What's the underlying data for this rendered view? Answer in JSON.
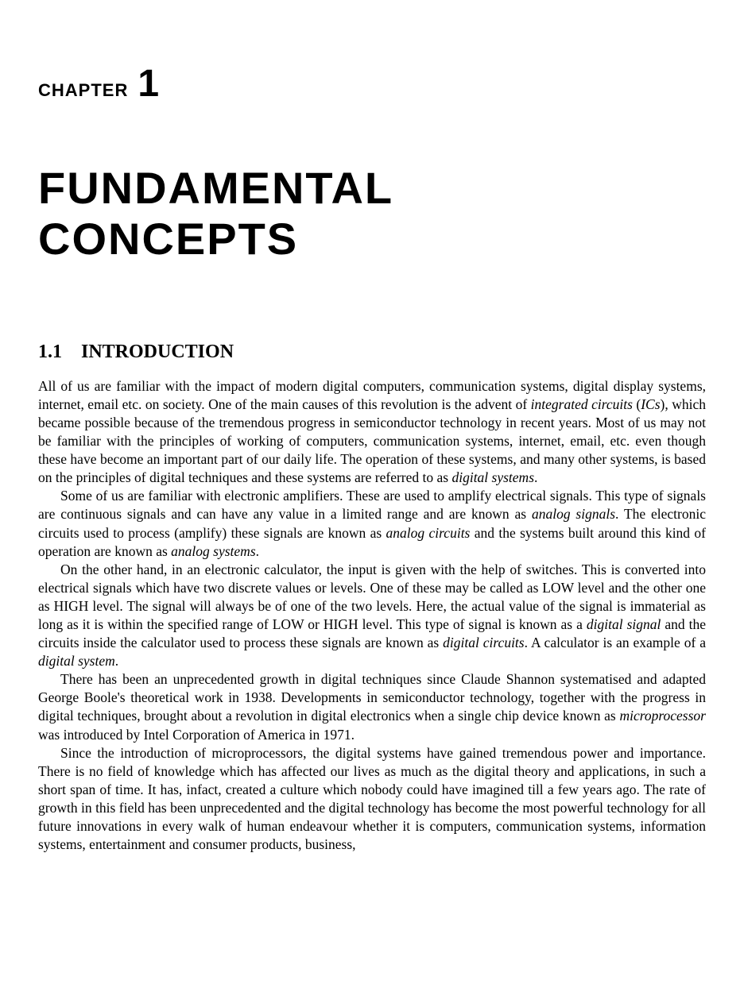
{
  "chapter": {
    "label": "CHAPTER",
    "number": "1",
    "title_line1": "FUNDAMENTAL",
    "title_line2": "CONCEPTS"
  },
  "section": {
    "number": "1.1",
    "title": "INTRODUCTION"
  },
  "paragraphs": {
    "p1_a": "All of us are familiar with the impact of modern digital computers, communication systems, digital display systems, internet, email etc. on society. One of the main causes of this revolution is the advent of ",
    "p1_em1": "integrated circuits ",
    "p1_b": "(",
    "p1_em2": "ICs",
    "p1_c": "), which became possible because of the tremendous progress in semiconductor technology in recent years. Most of us may not be familiar with the principles of working of computers, communication systems, internet, email, etc. even though these have become an important part of our daily life. The operation of these systems, and many other systems, is based on the principles of digital techniques and these systems are referred to as ",
    "p1_em3": "digital systems",
    "p1_d": ".",
    "p2_a": "Some of us are familiar with electronic amplifiers. These are used to amplify electrical signals. This type of signals are continuous signals and can have any value in a limited range and are known as ",
    "p2_em1": "analog signals",
    "p2_b": ". The electronic circuits used to process (amplify) these signals are known as ",
    "p2_em2": "analog circuits",
    "p2_c": " and the systems built around this kind of operation are known as ",
    "p2_em3": "analog systems",
    "p2_d": ".",
    "p3_a": "On the other hand, in an electronic calculator, the input is given with the help of switches. This is converted into electrical signals which have two discrete values or levels. One of these may be called as LOW level and the other one as HIGH level. The signal will always be of one of the two levels. Here, the actual value of the signal is immaterial as long as it is within the specified range of LOW or HIGH level. This type of signal is known as a ",
    "p3_em1": "digital signal",
    "p3_b": " and the circuits inside the calculator used to process these signals are known as ",
    "p3_em2": "digital circuits",
    "p3_c": ". A calculator is an example of a ",
    "p3_em3": "digital system",
    "p3_d": ".",
    "p4_a": "There has been an unprecedented growth in digital techniques since Claude Shannon systematised and adapted George Boole's theoretical work in 1938. Developments in semiconductor technology, together with the progress in digital techniques, brought about a revolution in digital electronics when a single chip device known as ",
    "p4_em1": "microprocessor",
    "p4_b": " was introduced by Intel Corporation of America in 1971.",
    "p5_a": "Since the introduction of microprocessors, the digital systems have gained tremendous power and importance. There is no field of knowledge which has affected our lives as much as the digital theory and applications, in such a short span of time. It has, infact, created a culture which nobody could have imagined till a few years ago. The rate of growth in this field has been unprecedented and the digital technology has become the most powerful technology for all future innovations in every walk of human endeavour whether it is computers, communication systems, information systems, entertainment and consumer products, business,"
  },
  "styling": {
    "background_color": "#ffffff",
    "text_color": "#000000",
    "chapter_label_fontsize": 22,
    "chapter_number_fontsize": 48,
    "chapter_title_fontsize": 56,
    "section_heading_fontsize": 24,
    "body_fontsize": 17.5,
    "body_lineheight": 1.32,
    "indent": 28,
    "sans_font": "Verdana",
    "serif_font": "Georgia"
  }
}
